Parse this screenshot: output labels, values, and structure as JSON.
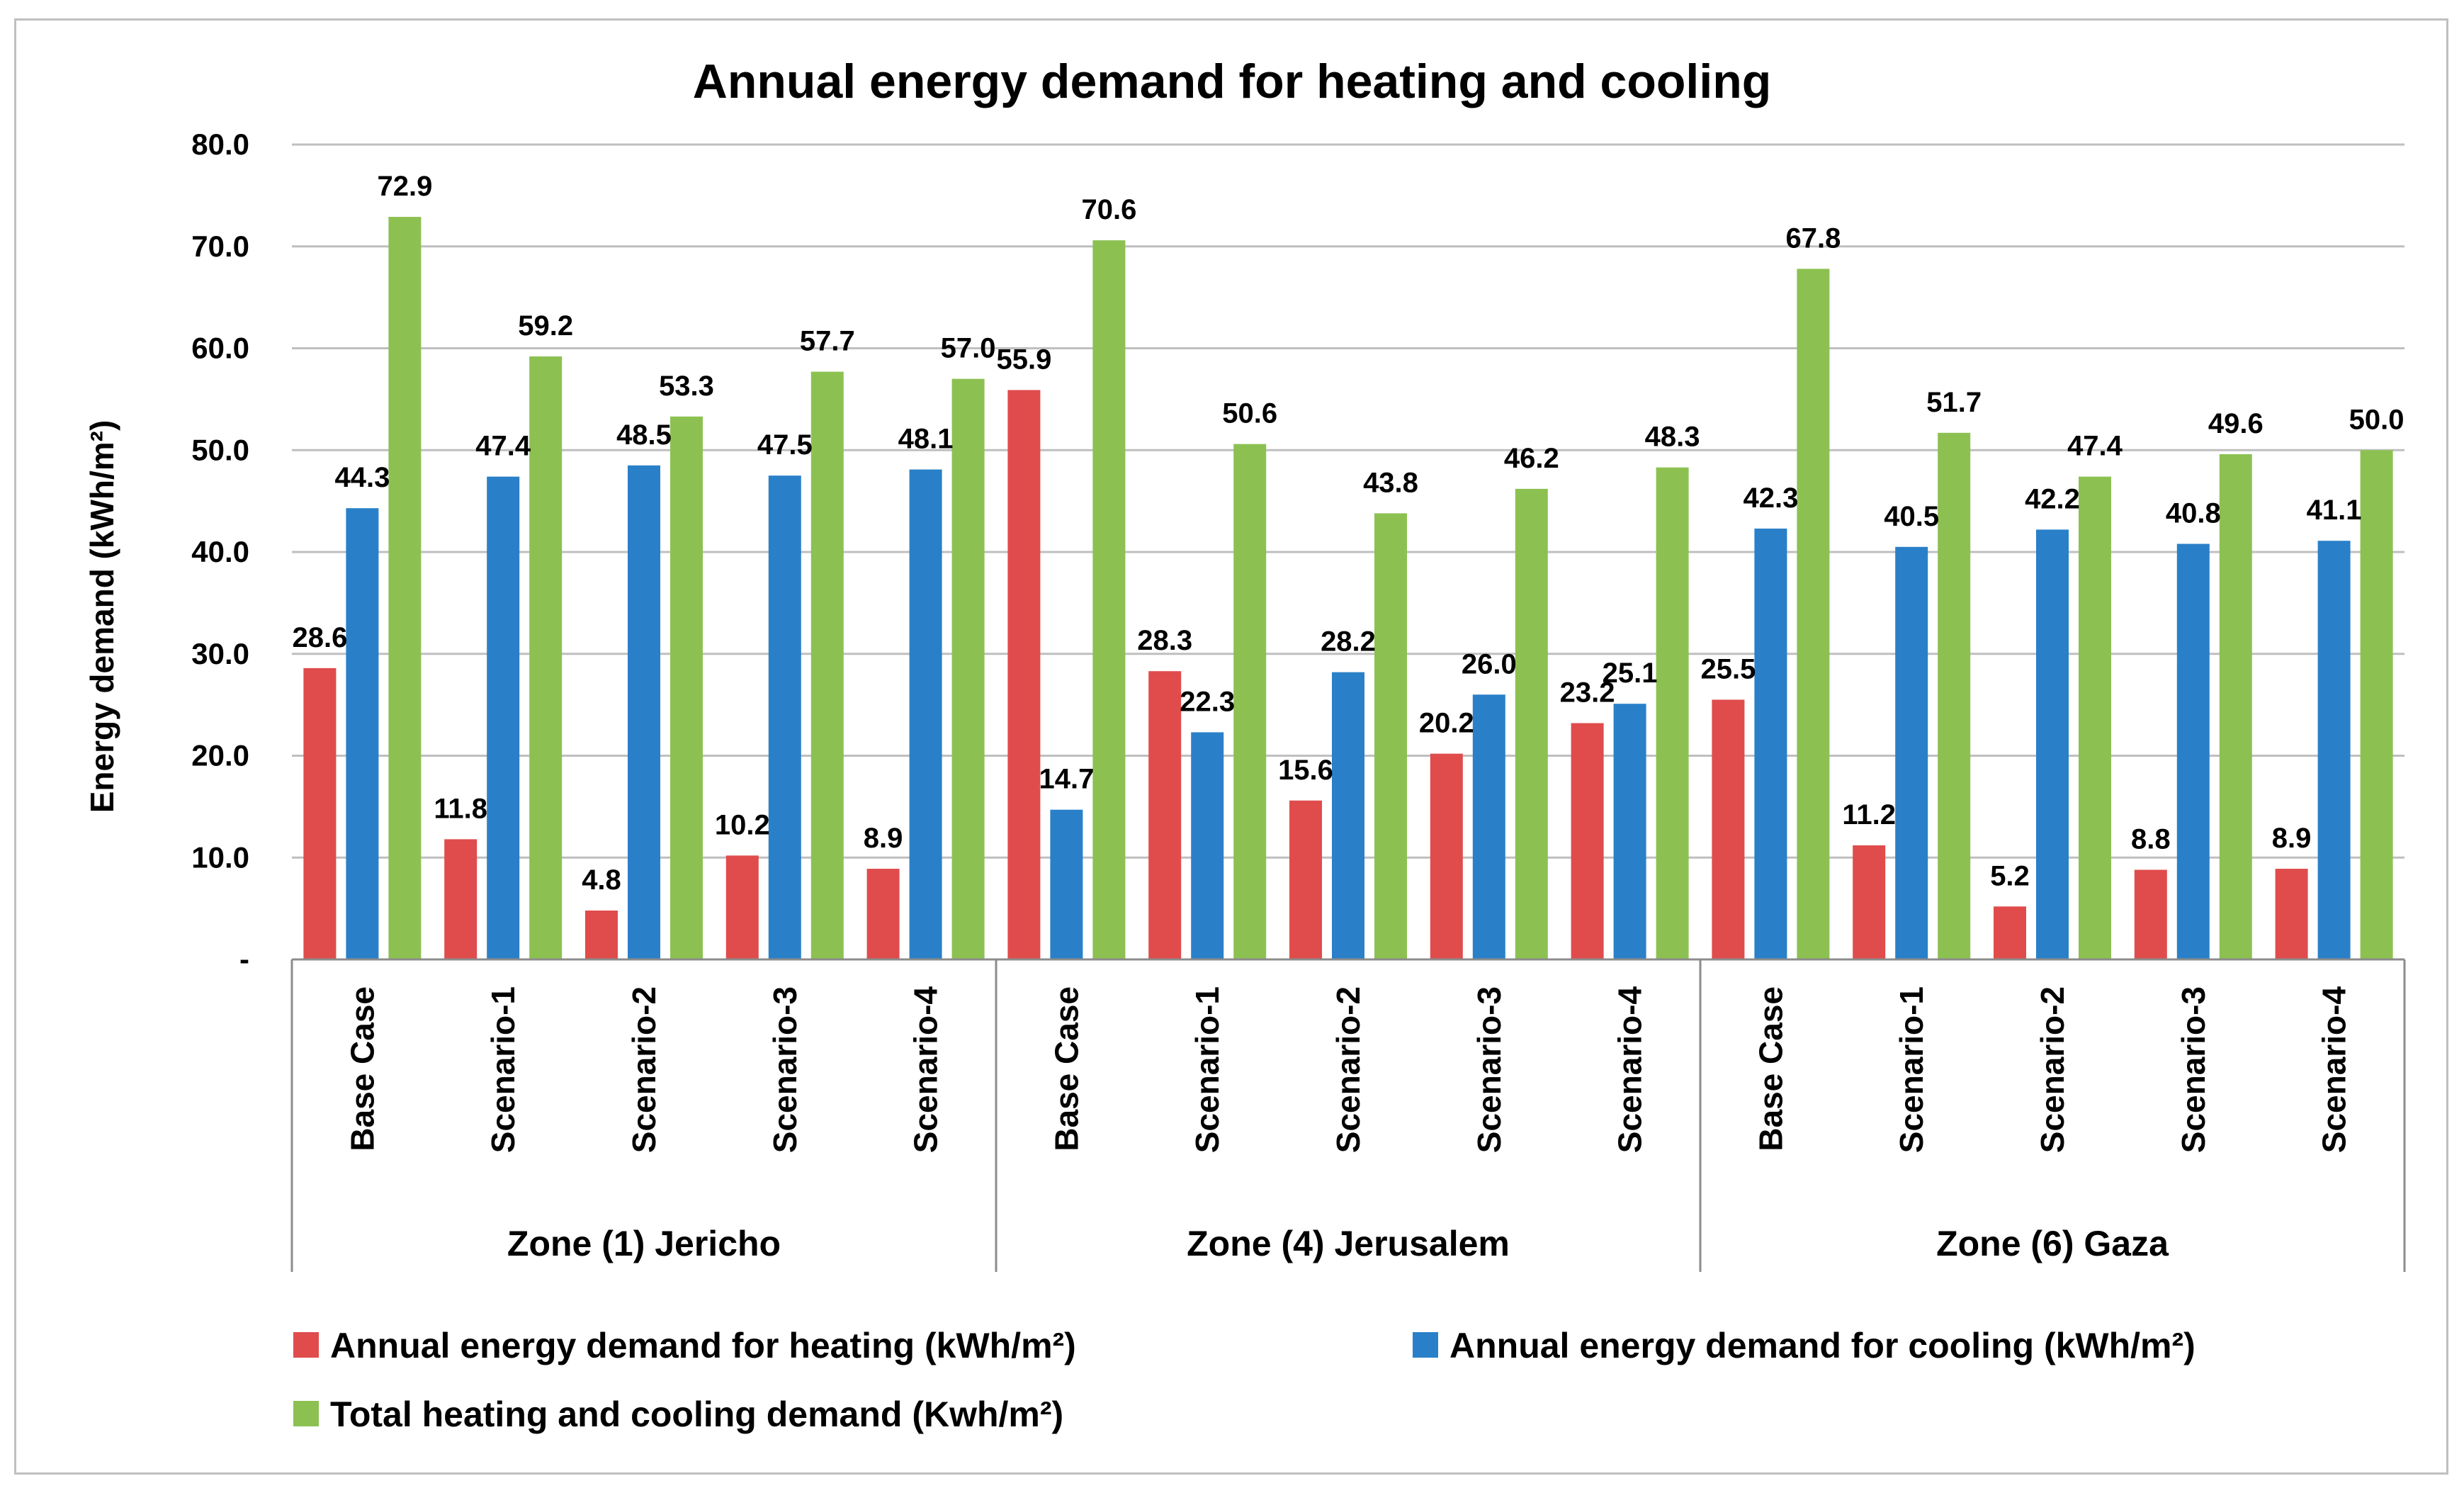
{
  "chart_data": {
    "type": "bar",
    "title": "Annual energy demand for heating and cooling",
    "ylabel": "Energy demand (kWh/m²)",
    "xlabel": "",
    "ylim": [
      0,
      80
    ],
    "yticks": [
      0,
      10,
      20,
      30,
      40,
      50,
      60,
      70,
      80
    ],
    "ytick_labels": [
      "-",
      "10.0",
      "20.0",
      "30.0",
      "40.0",
      "50.0",
      "60.0",
      "70.0",
      "80.0"
    ],
    "grid": true,
    "legend_position": "bottom",
    "groups": [
      {
        "name": "Zone (1) Jericho",
        "categories": [
          "Base Case",
          "Scenario-1",
          "Scenario-2",
          "Scenario-3",
          "Scenario-4"
        ]
      },
      {
        "name": "Zone (4) Jerusalem",
        "categories": [
          "Base Case",
          "Scenario-1",
          "Scenario-2",
          "Scenario-3",
          "Scenario-4"
        ]
      },
      {
        "name": "Zone (6) Gaza",
        "categories": [
          "Base Case",
          "Scenario-1",
          "Scenario-2",
          "Scenario-3",
          "Scenario-4"
        ]
      }
    ],
    "series": [
      {
        "name": "Annual energy demand for heating (kWh/m²)",
        "color": "#e04c4c",
        "values": [
          28.6,
          11.8,
          4.8,
          10.2,
          8.9,
          55.9,
          28.3,
          15.6,
          20.2,
          23.2,
          25.5,
          11.2,
          5.2,
          8.8,
          8.9
        ],
        "labels": [
          "28.6",
          "11.8",
          "4.8",
          "10.2",
          "8.9",
          "55.9",
          "28.3",
          "15.6",
          "20.2",
          "23.2",
          "25.5",
          "11.2",
          "5.2",
          "8.8",
          "8.9"
        ]
      },
      {
        "name": "Annual energy demand for cooling (kWh/m²)",
        "color": "#2a80c8",
        "values": [
          44.3,
          47.4,
          48.5,
          47.5,
          48.1,
          14.7,
          22.3,
          28.2,
          26.0,
          25.1,
          42.3,
          40.5,
          42.2,
          40.8,
          41.1
        ],
        "labels": [
          "44.3",
          "47.4",
          "48.5",
          "47.5",
          "48.1",
          "14.7",
          "22.3",
          "28.2",
          "26.0",
          "25.1",
          "42.3",
          "40.5",
          "42.2",
          "40.8",
          "41.1"
        ]
      },
      {
        "name": "Total heating and cooling demand (Kwh/m²)",
        "color": "#8cc152",
        "values": [
          72.9,
          59.2,
          53.3,
          57.7,
          57.0,
          70.6,
          50.6,
          43.8,
          46.2,
          48.3,
          67.8,
          51.7,
          47.4,
          49.6,
          50.0
        ],
        "labels": [
          "72.9",
          "59.2",
          "53.3",
          "57.7",
          "57.0",
          "70.6",
          "50.6",
          "43.8",
          "46.2",
          "48.3",
          "67.8",
          "51.7",
          "47.4",
          "49.6",
          "50.0"
        ]
      }
    ]
  }
}
